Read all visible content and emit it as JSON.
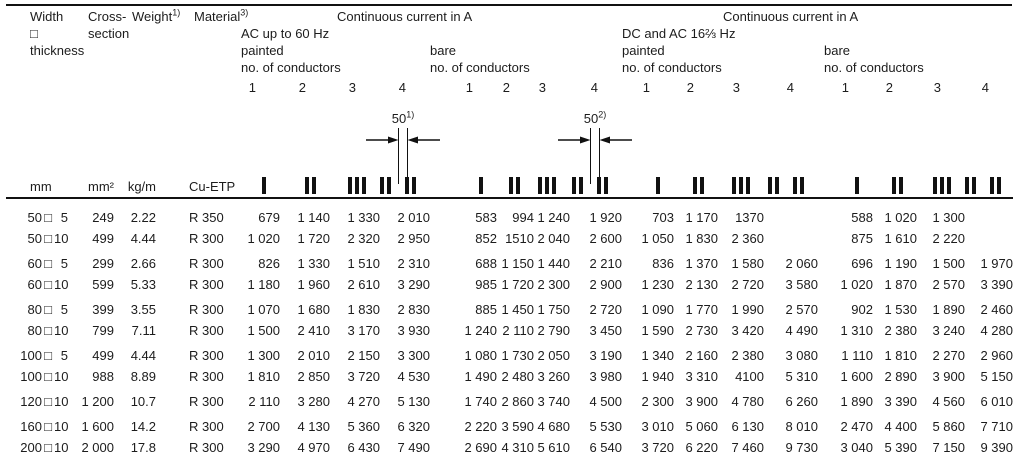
{
  "page": {
    "background": "#ffffff",
    "text_color": "#1c1c1c",
    "rule_color": "#111111"
  },
  "header": {
    "width_block": {
      "line1": "Width",
      "line2": "□",
      "line3": "thickness"
    },
    "cross_section": {
      "line1": "Cross-",
      "line2": "section"
    },
    "weight": {
      "label": "Weight",
      "sup": "1)"
    },
    "material": {
      "label": "Material",
      "sup": "3)"
    },
    "ac_group": {
      "title": "Continuous current in A",
      "subtitle": "AC up to 60 Hz",
      "painted_label": "painted",
      "bare_label": "bare",
      "conductors_label_painted": "no. of conductors",
      "conductors_label_bare": "no. of conductors"
    },
    "dc_group": {
      "title": "Continuous current in A",
      "subtitle": "DC and AC 16⅔ Hz",
      "painted_label": "painted",
      "bare_label": "bare",
      "conductors_label_painted": "no. of conductors",
      "conductors_label_bare": "no. of conductors"
    },
    "conductor_counts": [
      "1",
      "2",
      "3",
      "4"
    ]
  },
  "units_row": {
    "width_unit": "mm",
    "cross_section_unit": "mm²",
    "weight_unit": "kg/m",
    "material_value": "Cu-ETP"
  },
  "dimension_annotations": [
    {
      "value": "50",
      "sup": "1)"
    },
    {
      "value": "50",
      "sup": "2)"
    }
  ],
  "conductor_icons": [
    "1-conductor",
    "2-conductors",
    "3-conductors",
    "4-conductors-gapped"
  ],
  "separator_symbol": "□",
  "row_groups": [
    [
      0,
      1
    ],
    [
      2,
      3
    ],
    [
      4,
      5
    ],
    [
      6,
      7
    ],
    [
      8
    ],
    [
      9,
      10
    ]
  ],
  "rows": [
    {
      "width": "50",
      "thickness": "5",
      "cross_section": "249",
      "weight": "2.22",
      "material": "R 350",
      "ac_painted": [
        "679",
        "1 140",
        "1 330",
        "2 010"
      ],
      "ac_bare": [
        "583",
        "994",
        "1 240",
        "1 920"
      ],
      "dc_painted": [
        "703",
        "1 170",
        "1370",
        ""
      ],
      "dc_bare": [
        "588",
        "1 020",
        "1 300",
        ""
      ]
    },
    {
      "width": "50",
      "thickness": "10",
      "cross_section": "499",
      "weight": "4.44",
      "material": "R 300",
      "ac_painted": [
        "1 020",
        "1 720",
        "2 320",
        "2 950"
      ],
      "ac_bare": [
        "852",
        "1510",
        "2 040",
        "2 600"
      ],
      "dc_painted": [
        "1 050",
        "1 830",
        "2 360",
        ""
      ],
      "dc_bare": [
        "875",
        "1 610",
        "2 220",
        ""
      ]
    },
    {
      "width": "60",
      "thickness": "5",
      "cross_section": "299",
      "weight": "2.66",
      "material": "R 300",
      "ac_painted": [
        "826",
        "1 330",
        "1 510",
        "2 310"
      ],
      "ac_bare": [
        "688",
        "1 150",
        "1 440",
        "2 210"
      ],
      "dc_painted": [
        "836",
        "1 370",
        "1 580",
        "2 060"
      ],
      "dc_bare": [
        "696",
        "1 190",
        "1 500",
        "1 970"
      ]
    },
    {
      "width": "60",
      "thickness": "10",
      "cross_section": "599",
      "weight": "5.33",
      "material": "R 300",
      "ac_painted": [
        "1 180",
        "1 960",
        "2 610",
        "3 290"
      ],
      "ac_bare": [
        "985",
        "1 720",
        "2 300",
        "2 900"
      ],
      "dc_painted": [
        "1 230",
        "2 130",
        "2 720",
        "3 580"
      ],
      "dc_bare": [
        "1 020",
        "1 870",
        "2 570",
        "3 390"
      ]
    },
    {
      "width": "80",
      "thickness": "5",
      "cross_section": "399",
      "weight": "3.55",
      "material": "R 300",
      "ac_painted": [
        "1 070",
        "1 680",
        "1 830",
        "2 830"
      ],
      "ac_bare": [
        "885",
        "1 450",
        "1 750",
        "2 720"
      ],
      "dc_painted": [
        "1 090",
        "1 770",
        "1 990",
        "2 570"
      ],
      "dc_bare": [
        "902",
        "1 530",
        "1 890",
        "2 460"
      ]
    },
    {
      "width": "80",
      "thickness": "10",
      "cross_section": "799",
      "weight": "7.11",
      "material": "R 300",
      "ac_painted": [
        "1 500",
        "2 410",
        "3 170",
        "3 930"
      ],
      "ac_bare": [
        "1 240",
        "2 110",
        "2 790",
        "3 450"
      ],
      "dc_painted": [
        "1 590",
        "2 730",
        "3 420",
        "4 490"
      ],
      "dc_bare": [
        "1 310",
        "2 380",
        "3 240",
        "4 280"
      ]
    },
    {
      "width": "100",
      "thickness": "5",
      "cross_section": "499",
      "weight": "4.44",
      "material": "R 300",
      "ac_painted": [
        "1 300",
        "2 010",
        "2 150",
        "3 300"
      ],
      "ac_bare": [
        "1 080",
        "1 730",
        "2 050",
        "3 190"
      ],
      "dc_painted": [
        "1 340",
        "2 160",
        "2 380",
        "3 080"
      ],
      "dc_bare": [
        "1 110",
        "1 810",
        "2 270",
        "2 960"
      ]
    },
    {
      "width": "100",
      "thickness": "10",
      "cross_section": "988",
      "weight": "8.89",
      "material": "R 300",
      "ac_painted": [
        "1 810",
        "2 850",
        "3 720",
        "4 530"
      ],
      "ac_bare": [
        "1 490",
        "2 480",
        "3 260",
        "3 980"
      ],
      "dc_painted": [
        "1 940",
        "3 310",
        "4100",
        "5 310"
      ],
      "dc_bare": [
        "1 600",
        "2 890",
        "3 900",
        "5 150"
      ]
    },
    {
      "width": "120",
      "thickness": "10",
      "cross_section": "1 200",
      "weight": "10.7",
      "material": "R 300",
      "ac_painted": [
        "2 110",
        "3 280",
        "4 270",
        "5 130"
      ],
      "ac_bare": [
        "1 740",
        "2 860",
        "3 740",
        "4 500"
      ],
      "dc_painted": [
        "2 300",
        "3 900",
        "4 780",
        "6 260"
      ],
      "dc_bare": [
        "1 890",
        "3 390",
        "4 560",
        "6 010"
      ]
    },
    {
      "width": "160",
      "thickness": "10",
      "cross_section": "1 600",
      "weight": "14.2",
      "material": "R 300",
      "ac_painted": [
        "2 700",
        "4 130",
        "5 360",
        "6 320"
      ],
      "ac_bare": [
        "2 220",
        "3 590",
        "4 680",
        "5 530"
      ],
      "dc_painted": [
        "3 010",
        "5 060",
        "6 130",
        "8 010"
      ],
      "dc_bare": [
        "2 470",
        "4 400",
        "5 860",
        "7 710"
      ]
    },
    {
      "width": "200",
      "thickness": "10",
      "cross_section": "2 000",
      "weight": "17.8",
      "material": "R 300",
      "ac_painted": [
        "3 290",
        "4 970",
        "6 430",
        "7 490"
      ],
      "ac_bare": [
        "2 690",
        "4 310",
        "5 610",
        "6 540"
      ],
      "dc_painted": [
        "3 720",
        "6 220",
        "7 460",
        "9 730"
      ],
      "dc_bare": [
        "3 040",
        "5 390",
        "7 150",
        "9 390"
      ]
    }
  ]
}
